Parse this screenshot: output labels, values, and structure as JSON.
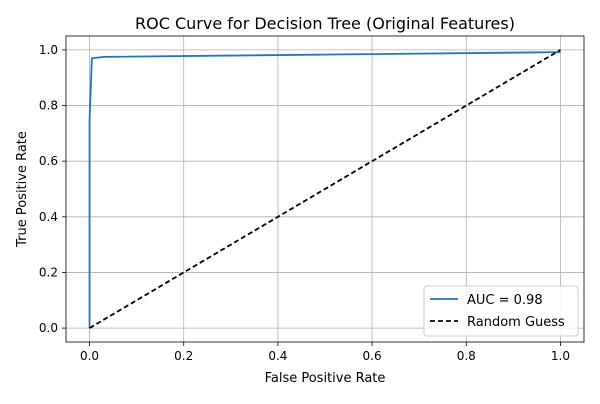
{
  "chart_data": {
    "type": "line",
    "title": "ROC Curve for Decision Tree (Original Features)",
    "xlabel": "False Positive Rate",
    "ylabel": "True Positive Rate",
    "xlim": [
      -0.05,
      1.05
    ],
    "ylim": [
      -0.05,
      1.05
    ],
    "xticks": [
      0.0,
      0.2,
      0.4,
      0.6,
      0.8,
      1.0
    ],
    "yticks": [
      0.0,
      0.2,
      0.4,
      0.6,
      0.8,
      1.0
    ],
    "xtick_labels": [
      "0.0",
      "0.2",
      "0.4",
      "0.6",
      "0.8",
      "1.0"
    ],
    "ytick_labels": [
      "0.0",
      "0.2",
      "0.4",
      "0.6",
      "0.8",
      "1.0"
    ],
    "grid": true,
    "legend_position": "bottom-right",
    "series": [
      {
        "name": "AUC = 0.98",
        "color": "#1f77b4",
        "style": "solid",
        "x": [
          0.0,
          0.0,
          0.005,
          0.01,
          0.03,
          1.0
        ],
        "y": [
          0.0,
          0.75,
          0.97,
          0.971,
          0.975,
          0.992
        ]
      },
      {
        "name": "Random Guess",
        "color": "#000000",
        "style": "dashed",
        "x": [
          0.0,
          1.0
        ],
        "y": [
          0.0,
          1.0
        ]
      }
    ]
  }
}
